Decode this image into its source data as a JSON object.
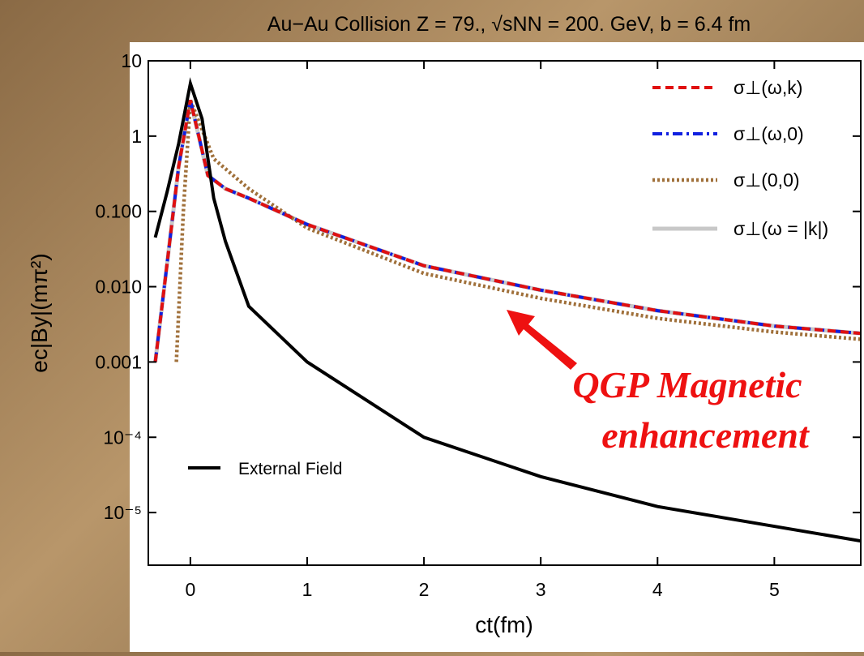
{
  "chart_data": {
    "type": "line",
    "title": "Au−Au Collision Z = 79., √sNN = 200. GeV, b = 6.4 fm",
    "x_label": "ct(fm)",
    "y_label": "ec|By|(mπ²)",
    "log_y": true,
    "xlim": [
      -0.36,
      5.74
    ],
    "ylim": [
      2e-06,
      10
    ],
    "xticks": [
      0,
      1,
      2,
      3,
      4,
      5
    ],
    "yticks": [
      10,
      1,
      {
        "value": 0.1,
        "label": "0.100"
      },
      {
        "value": 0.01,
        "label": "0.010"
      },
      0.001,
      {
        "value": 0.0001,
        "label": "10⁻⁴"
      },
      {
        "value": 1e-05,
        "label": "10⁻⁵"
      }
    ],
    "series": [
      {
        "name": "σ⊥(ω,k)",
        "color": "#e01010",
        "dash": "dashed",
        "x": [
          -0.3,
          -0.2,
          -0.1,
          0,
          0.15,
          0.3,
          0.5,
          1,
          2,
          3,
          4,
          5,
          5.74
        ],
        "values": [
          0.001,
          0.02,
          0.4,
          3,
          0.3,
          0.2,
          0.15,
          0.067,
          0.019,
          0.009,
          0.0048,
          0.003,
          0.0024
        ]
      },
      {
        "name": "σ⊥(ω,0)",
        "color": "#1020e0",
        "dash": "dashdot",
        "x": [
          -0.3,
          -0.2,
          -0.1,
          0,
          0.15,
          0.3,
          0.5,
          1,
          2,
          3,
          4,
          5,
          5.74
        ],
        "values": [
          0.001,
          0.02,
          0.4,
          3,
          0.3,
          0.2,
          0.15,
          0.067,
          0.019,
          0.009,
          0.0048,
          0.003,
          0.0024
        ]
      },
      {
        "name": "σ⊥(0,0)",
        "color": "#a0703a",
        "dash": "dotted",
        "x": [
          -0.12,
          -0.06,
          0,
          0.2,
          0.5,
          1,
          2,
          3,
          4,
          5,
          5.74
        ],
        "values": [
          0.001,
          0.1,
          3,
          0.5,
          0.2,
          0.06,
          0.015,
          0.007,
          0.0038,
          0.0025,
          0.002
        ]
      },
      {
        "name": "σ⊥(ω = |k|)",
        "color": "#c8c8c8",
        "dash": "solid",
        "x": [
          -0.3,
          -0.2,
          -0.1,
          0,
          0.15,
          0.3,
          0.5,
          1,
          2,
          3,
          4,
          5,
          5.74
        ],
        "values": [
          0.001,
          0.02,
          0.4,
          3,
          0.3,
          0.2,
          0.15,
          0.067,
          0.019,
          0.009,
          0.0048,
          0.003,
          0.0024
        ]
      },
      {
        "name": "External Field",
        "color": "#000000",
        "dash": "solid",
        "x": [
          -0.3,
          -0.2,
          -0.1,
          0,
          0.1,
          0.2,
          0.3,
          0.5,
          1,
          2,
          3,
          4,
          5.74
        ],
        "values": [
          0.045,
          0.18,
          0.8,
          5,
          1.7,
          0.15,
          0.04,
          0.0055,
          0.001,
          0.0001,
          3e-05,
          1.2e-05,
          4.2e-06
        ]
      }
    ],
    "annotations": [
      "QGP Magnetic",
      "enhancement"
    ]
  }
}
